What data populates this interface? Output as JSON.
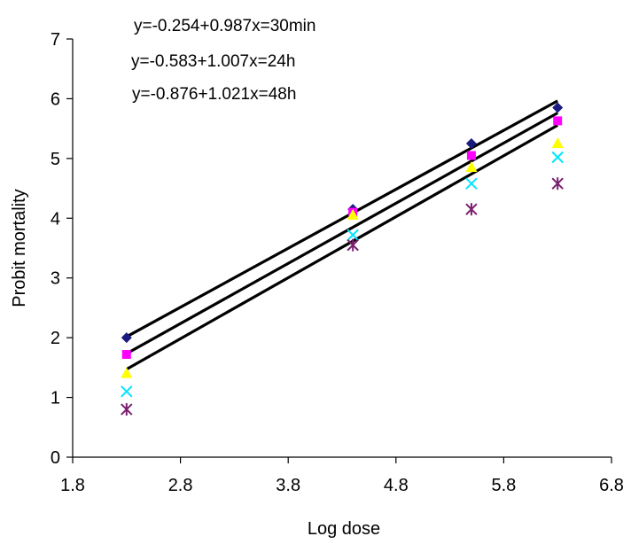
{
  "colors": {
    "axis": "#000000",
    "fit_line": "#000000",
    "series_navy": "#1a1a80",
    "series_magenta": "#ff00ff",
    "series_yellow": "#ffff00",
    "series_cyan": "#00e5ff",
    "series_purple": "#7a1f6f"
  },
  "chart_data": {
    "type": "scatter",
    "title": "",
    "xlabel": "Log dose",
    "ylabel": "Probit mortality",
    "xlim": [
      1.8,
      6.8
    ],
    "ylim": [
      0,
      7
    ],
    "x_ticks": [
      "1.8",
      "2.8",
      "3.8",
      "4.8",
      "5.8",
      "6.8"
    ],
    "y_ticks": [
      "0",
      "1",
      "2",
      "3",
      "4",
      "5",
      "6",
      "7"
    ],
    "grid": false,
    "legend": "none",
    "annotations": [
      "y=-0.254+0.987x=30min",
      "y=-0.583+1.007x=24h",
      "y=-0.876+1.021x=48h"
    ],
    "x": [
      2.3,
      4.4,
      5.5,
      6.3
    ],
    "series": [
      {
        "marker": "diamond",
        "color": "#1a1a80",
        "values": [
          2.0,
          4.15,
          5.25,
          5.85
        ]
      },
      {
        "marker": "square",
        "color": "#ff00ff",
        "values": [
          1.72,
          4.1,
          5.05,
          5.63
        ]
      },
      {
        "marker": "triangle",
        "color": "#ffff00",
        "values": [
          1.4,
          4.05,
          4.85,
          5.25
        ]
      },
      {
        "marker": "x",
        "color": "#00e5ff",
        "values": [
          1.1,
          3.72,
          4.58,
          5.02
        ]
      },
      {
        "marker": "star",
        "color": "#7a1f6f",
        "values": [
          0.8,
          3.55,
          4.15,
          4.58
        ]
      }
    ],
    "fit_lines": [
      {
        "intercept": -0.254,
        "slope": 0.987,
        "x_range": [
          2.3,
          6.3
        ]
      },
      {
        "intercept": -0.583,
        "slope": 1.007,
        "x_range": [
          2.3,
          6.3
        ]
      },
      {
        "intercept": -0.876,
        "slope": 1.021,
        "x_range": [
          2.3,
          6.3
        ]
      }
    ]
  }
}
